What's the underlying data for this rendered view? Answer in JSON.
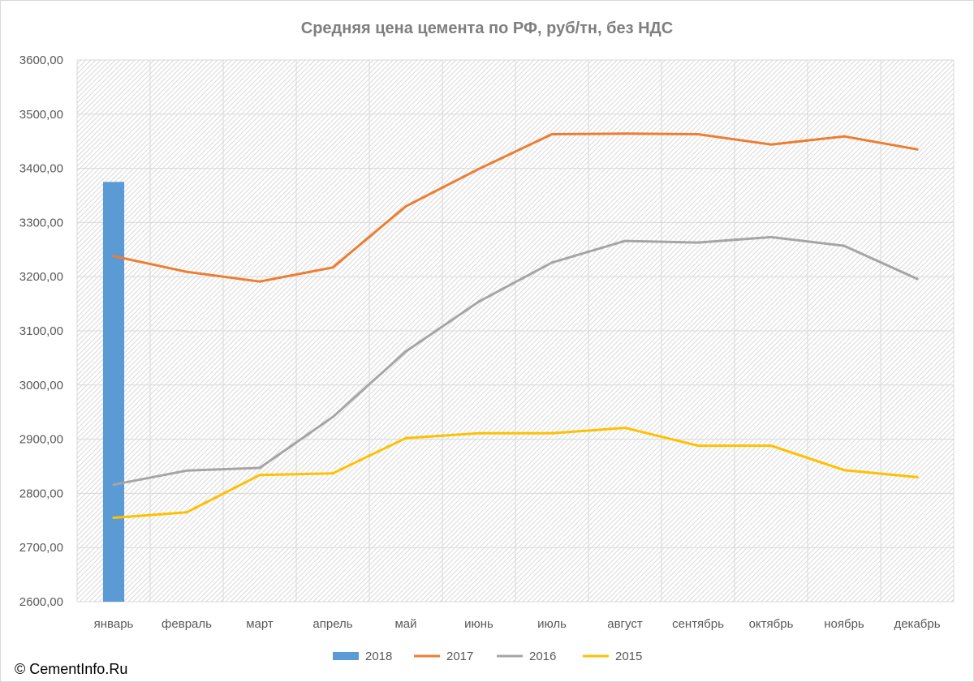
{
  "chart_data": {
    "type": "bar+line",
    "title": "Средняя цена цемента по РФ, руб/тн, без НДС",
    "categories": [
      "январь",
      "февраль",
      "март",
      "апрель",
      "май",
      "июнь",
      "июль",
      "август",
      "сентябрь",
      "октябрь",
      "ноябрь",
      "декабрь"
    ],
    "ylim": [
      2600,
      3600
    ],
    "yticks": [
      "2600,00",
      "2700,00",
      "2800,00",
      "2900,00",
      "3000,00",
      "3100,00",
      "3200,00",
      "3300,00",
      "3400,00",
      "3500,00",
      "3600,00"
    ],
    "grid": true,
    "legend_position": "bottom",
    "series": [
      {
        "name": "2018",
        "kind": "bar",
        "color": "#5b9bd5",
        "values": [
          3375,
          null,
          null,
          null,
          null,
          null,
          null,
          null,
          null,
          null,
          null,
          null
        ]
      },
      {
        "name": "2017",
        "kind": "line",
        "color": "#ed7d31",
        "values": [
          3238,
          3209,
          3191,
          3217,
          3330,
          3399,
          3463,
          3464,
          3463,
          3444,
          3459,
          3435
        ]
      },
      {
        "name": "2016",
        "kind": "line",
        "color": "#a5a5a5",
        "values": [
          2816,
          2842,
          2847,
          2941,
          3062,
          3154,
          3226,
          3266,
          3263,
          3273,
          3257,
          3196
        ]
      },
      {
        "name": "2015",
        "kind": "line",
        "color": "#ffc000",
        "values": [
          2755,
          2765,
          2834,
          2837,
          2902,
          2911,
          2911,
          2921,
          2888,
          2888,
          2843,
          2830
        ]
      }
    ]
  },
  "credit": "© CementInfo.Ru"
}
